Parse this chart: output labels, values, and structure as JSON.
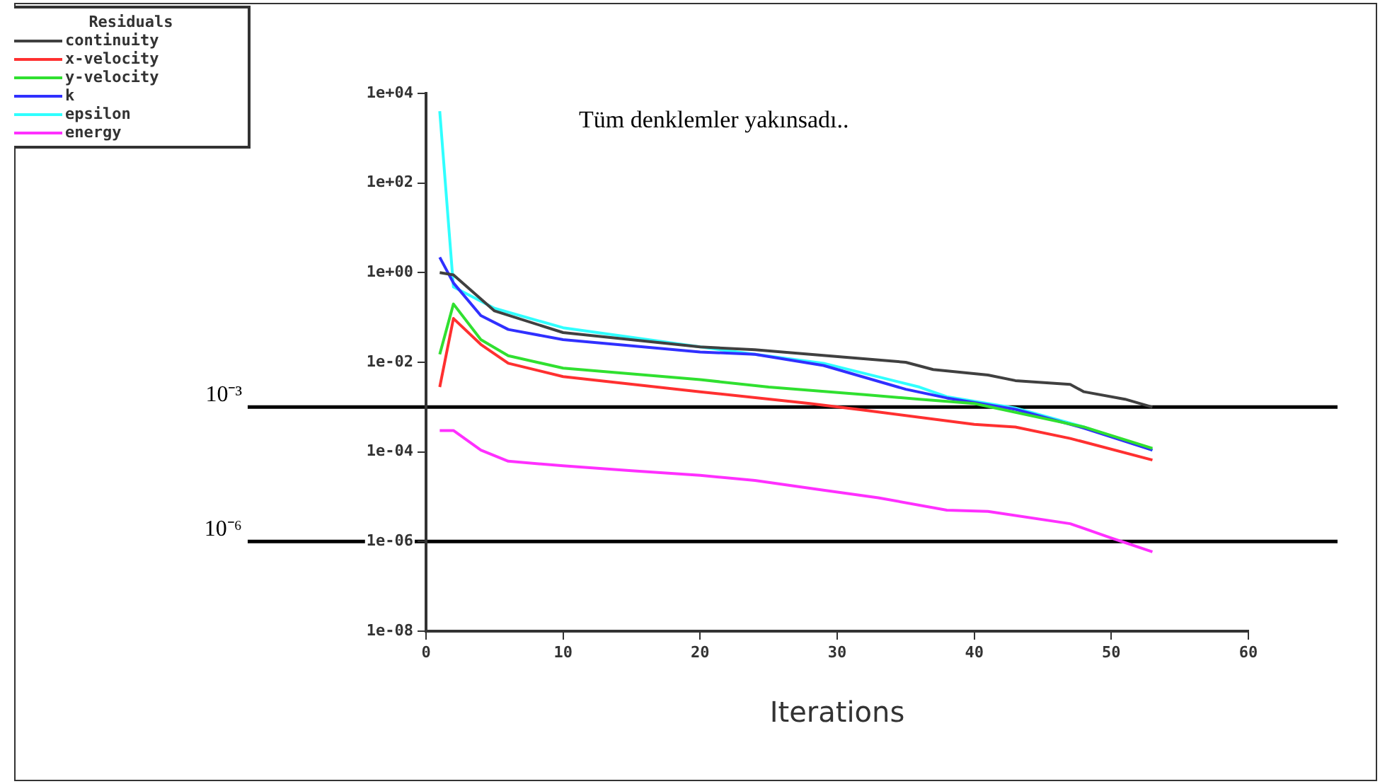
{
  "chart_data": {
    "type": "line",
    "xlabel": "Iterations",
    "legend_title": "Residuals",
    "legend": "top left",
    "grid": false,
    "log": "y",
    "marker": "none",
    "line_style": "solid",
    "annotations": [
      "Tüm denklemler yakınsadı.."
    ],
    "xlim": [
      0,
      60
    ],
    "xticks": [
      0,
      10,
      20,
      30,
      40,
      50,
      60
    ],
    "ylim": [
      1e-08,
      10000
    ],
    "yticks": [
      {
        "value": 1e-08,
        "label": "1e-08"
      },
      {
        "value": 1e-06,
        "label": "1e-06"
      },
      {
        "value": 0.0001,
        "label": "1e-04"
      },
      {
        "value": 0.01,
        "label": "1e-02"
      },
      {
        "value": 1,
        "label": "1e+00"
      },
      {
        "value": 100,
        "label": "1e+02"
      },
      {
        "value": 10000,
        "label": "1e+04"
      }
    ],
    "ref_lines": [
      {
        "axis": "y",
        "value": 0.001,
        "label": "10⁻³",
        "color": "#000000"
      },
      {
        "axis": "y",
        "value": 1e-06,
        "label": "10⁻⁶",
        "color": "#000000"
      }
    ],
    "series": [
      {
        "name": "continuity",
        "color": "#404040",
        "x": [
          1,
          2,
          5,
          10,
          20,
          24,
          26,
          35,
          37,
          41,
          43,
          47,
          48,
          51,
          53
        ],
        "values": [
          1.0,
          0.89,
          0.14,
          0.046,
          0.022,
          0.019,
          0.017,
          0.01,
          0.0069,
          0.0052,
          0.0039,
          0.0032,
          0.0022,
          0.0015,
          0.001
        ]
      },
      {
        "name": "x-velocity",
        "color": "#ff3030",
        "x": [
          1,
          2,
          4,
          6,
          10,
          20,
          28,
          32,
          40,
          43,
          47,
          53
        ],
        "values": [
          0.0028,
          0.095,
          0.025,
          0.0095,
          0.0048,
          0.0022,
          0.0012,
          0.00085,
          0.00041,
          0.00036,
          0.0002,
          6.6e-05
        ]
      },
      {
        "name": "y-velocity",
        "color": "#30e030",
        "x": [
          1,
          2,
          4,
          6,
          10,
          20,
          25,
          32,
          36,
          40,
          48,
          53
        ],
        "values": [
          0.015,
          0.2,
          0.032,
          0.014,
          0.0074,
          0.0041,
          0.0028,
          0.0019,
          0.0015,
          0.0012,
          0.00036,
          0.00012
        ]
      },
      {
        "name": "k",
        "color": "#3030ff",
        "x": [
          1,
          2,
          4,
          6,
          10,
          20,
          24,
          29,
          35,
          38,
          43,
          48,
          53
        ],
        "values": [
          2.2,
          0.59,
          0.11,
          0.054,
          0.032,
          0.017,
          0.015,
          0.0085,
          0.0025,
          0.0016,
          0.00089,
          0.00034,
          0.00011
        ]
      },
      {
        "name": "epsilon",
        "color": "#30ffff",
        "x": [
          1,
          2,
          5,
          10,
          20,
          24,
          29,
          36,
          38,
          43,
          48,
          53
        ],
        "values": [
          4000,
          0.48,
          0.16,
          0.059,
          0.022,
          0.015,
          0.0095,
          0.0028,
          0.0017,
          0.00095,
          0.00036,
          0.00011
        ]
      },
      {
        "name": "energy",
        "color": "#ff30ff",
        "x": [
          1,
          2,
          4,
          6,
          10,
          15,
          20,
          24,
          29,
          33,
          38,
          41,
          47,
          50,
          53
        ],
        "values": [
          0.0003,
          0.0003,
          0.00011,
          6.2e-05,
          4.9e-05,
          3.8e-05,
          3e-05,
          2.3e-05,
          1.4e-05,
          9.5e-06,
          5e-06,
          4.7e-06,
          2.5e-06,
          1.2e-06,
          5.9e-07
        ]
      }
    ]
  }
}
